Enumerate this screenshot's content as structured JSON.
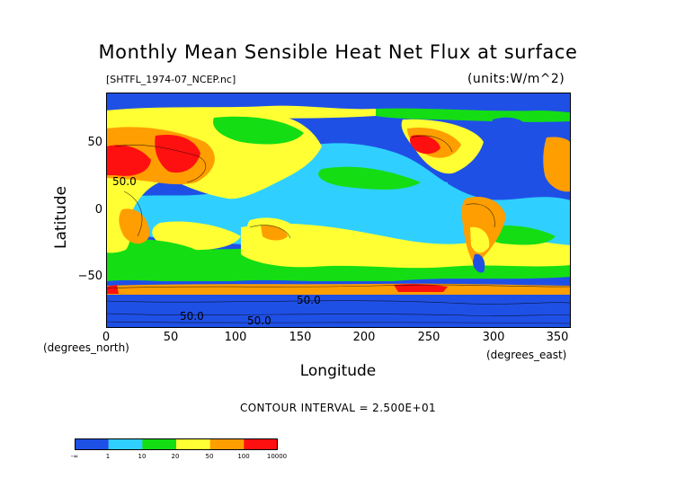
{
  "title": "Monthly Mean Sensible Heat Net Flux at surface",
  "subtitle_left": "[SHTFL_1974-07_NCEP.nc]",
  "subtitle_right": "(units:W/m^2)",
  "axes": {
    "ylabel": "Latitude",
    "xlabel": "Longitude",
    "y_units": "(degrees_north)",
    "x_units": "(degrees_east)",
    "y_ticks": [
      "50",
      "0",
      "−50"
    ],
    "x_ticks": [
      "0",
      "50",
      "100",
      "150",
      "200",
      "250",
      "300",
      "350"
    ]
  },
  "contour_interval": "CONTOUR INTERVAL = 2.500E+01",
  "contour_labels": [
    "50.0",
    "50.0",
    "50.0",
    "50.0"
  ],
  "colorbar": {
    "labels": [
      "-∞",
      "1",
      "10",
      "20",
      "50",
      "100",
      "10000"
    ],
    "colors": [
      "#1f50e6",
      "#2fd0ff",
      "#14dd14",
      "#ffff33",
      "#ff9e00",
      "#ff1010"
    ]
  },
  "palette": {
    "ocean_blue": "#1f50e6",
    "cyan": "#2fd0ff",
    "green": "#14dd14",
    "yellow": "#ffff33",
    "orange": "#ff9e00",
    "red": "#ff1010"
  }
}
